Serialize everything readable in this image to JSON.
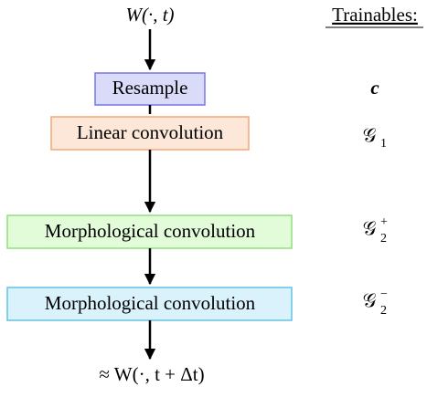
{
  "input_label": "W(·, t)",
  "output_label": "≈ W(·, t + Δt)",
  "trainables_header": "Trainables:",
  "nodes": [
    {
      "label": "Resample"
    },
    {
      "label": "Linear convolution"
    },
    {
      "label": "Morphological convolution"
    },
    {
      "label": "Morphological convolution"
    }
  ],
  "trainables": [
    {
      "symbol": "c"
    },
    {
      "symbol": "𝒢",
      "sub": "1"
    },
    {
      "symbol": "𝒢",
      "sup": "+",
      "sub": "2"
    },
    {
      "symbol": "𝒢",
      "sup": "−",
      "sub": "2"
    }
  ]
}
